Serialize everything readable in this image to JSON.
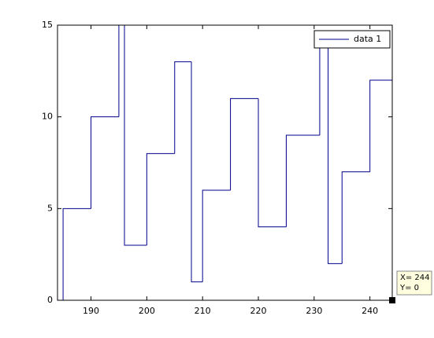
{
  "chart_data": {
    "type": "stairs",
    "x": [
      184,
      185,
      190,
      195,
      196,
      200,
      205,
      208,
      210,
      215,
      220,
      225,
      231,
      232.5,
      235,
      240,
      244
    ],
    "series": [
      {
        "name": "data 1",
        "color": "#00008b",
        "values": [
          0,
          5,
          10,
          15,
          3,
          8,
          13,
          1,
          6,
          11,
          4,
          9,
          14,
          2,
          7,
          12,
          0
        ]
      }
    ],
    "xlim": [
      184,
      244
    ],
    "ylim": [
      0,
      15
    ],
    "xticks": [
      190,
      200,
      210,
      220,
      230,
      240
    ],
    "yticks": [
      0,
      5,
      10,
      15
    ],
    "legend": "top-right",
    "datatip": {
      "x_label": "X= 244",
      "y_label": "Y= 0",
      "point": 16
    }
  }
}
